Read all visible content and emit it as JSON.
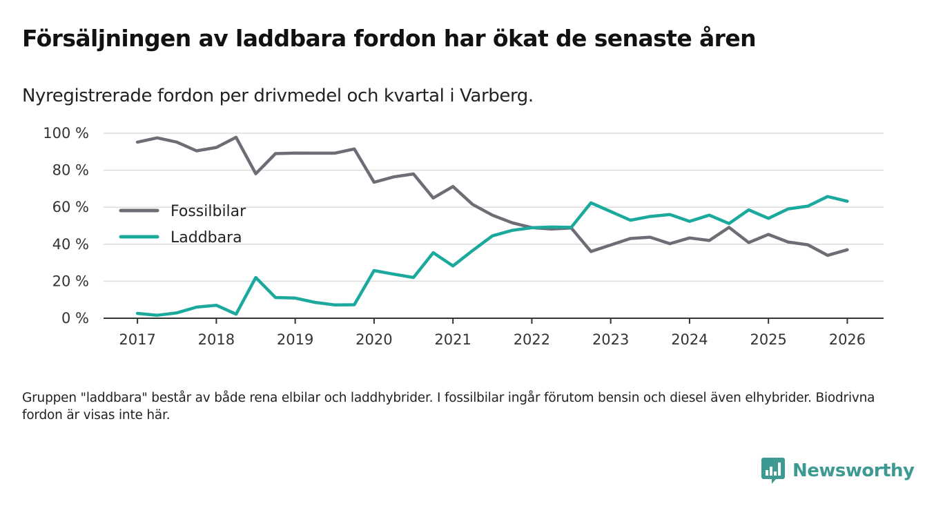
{
  "title": "Försäljningen av laddbara fordon har ökat de senaste åren",
  "subtitle": "Nyregistrerade fordon per drivmedel och kvartal i Varberg.",
  "note": "Gruppen \"laddbara\" består av både rena elbilar och laddhybrider. I fossilbilar ingår förutom bensin och diesel även elhybrider. Biodrivna fordon är visas inte här.",
  "brand": {
    "name": "Newsworthy",
    "color": "#3d9a93"
  },
  "chart_data": {
    "type": "line",
    "x_ticks": [
      2017,
      2018,
      2019,
      2020,
      2021,
      2022,
      2023,
      2024,
      2025,
      2026
    ],
    "x_tick_labels": [
      "2017",
      "2018",
      "2019",
      "2020",
      "2021",
      "2022",
      "2023",
      "2024",
      "2025",
      "2026"
    ],
    "y_ticks": [
      0,
      20,
      40,
      60,
      80,
      100
    ],
    "y_tick_labels": [
      "0 %",
      "20 %",
      "40 %",
      "60 %",
      "80 %",
      "100 %"
    ],
    "xlim": [
      2016.57,
      2026.46
    ],
    "ylim": [
      0,
      100
    ],
    "grid": true,
    "legend_position": "left-middle",
    "series": [
      {
        "name": "Fossilbilar",
        "color": "#6e6d75",
        "x": [
          2017.0,
          2017.25,
          2017.5,
          2017.75,
          2018.0,
          2018.25,
          2018.5,
          2018.75,
          2019.0,
          2019.25,
          2019.5,
          2019.75,
          2020.0,
          2020.25,
          2020.5,
          2020.75,
          2021.0,
          2021.25,
          2021.5,
          2021.75,
          2022.0,
          2022.25,
          2022.5,
          2022.75,
          2023.0,
          2023.25,
          2023.5,
          2023.75,
          2024.0,
          2024.25,
          2024.5,
          2024.75,
          2025.0,
          2025.25,
          2025.5,
          2025.75,
          2026.0
        ],
        "values": [
          95.2,
          97.5,
          95.2,
          90.5,
          92.3,
          97.8,
          78.1,
          89.0,
          89.3,
          89.2,
          89.2,
          91.5,
          73.5,
          76.4,
          78.0,
          65.0,
          71.2,
          61.5,
          55.7,
          51.6,
          49.0,
          48.2,
          48.8,
          36.1,
          39.6,
          43.1,
          43.8,
          40.3,
          43.4,
          42.0,
          49.1,
          40.9,
          45.3,
          41.2,
          39.7,
          34.0,
          37.0
        ]
      },
      {
        "name": "Laddbara",
        "color": "#1aa99c",
        "x": [
          2017.0,
          2017.25,
          2017.5,
          2017.75,
          2018.0,
          2018.25,
          2018.5,
          2018.75,
          2019.0,
          2019.25,
          2019.5,
          2019.75,
          2020.0,
          2020.25,
          2020.5,
          2020.75,
          2021.0,
          2021.25,
          2021.5,
          2021.75,
          2022.0,
          2022.25,
          2022.5,
          2022.75,
          2023.0,
          2023.25,
          2023.5,
          2023.75,
          2024.0,
          2024.25,
          2024.5,
          2024.75,
          2025.0,
          2025.25,
          2025.5,
          2025.75,
          2026.0
        ],
        "values": [
          2.6,
          1.6,
          2.9,
          6.0,
          7.0,
          2.2,
          22.0,
          11.2,
          10.9,
          8.6,
          7.2,
          7.3,
          25.8,
          23.8,
          22.0,
          35.4,
          28.3,
          36.6,
          44.5,
          47.5,
          48.9,
          49.3,
          49.1,
          62.4,
          57.7,
          53.0,
          55.0,
          56.1,
          52.4,
          55.7,
          51.2,
          58.6,
          54.0,
          59.1,
          60.6,
          65.8,
          63.2
        ]
      }
    ]
  }
}
